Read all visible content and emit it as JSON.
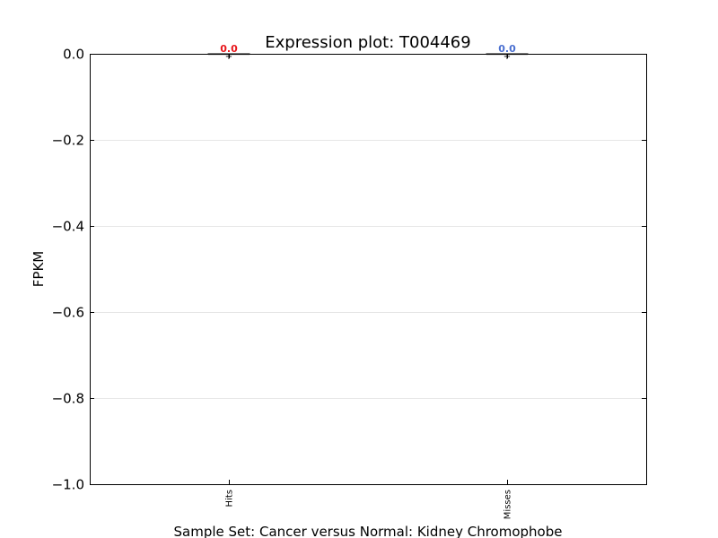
{
  "chart_data": {
    "type": "box",
    "title": "Expression plot: T004469",
    "xlabel": "Sample Set: Cancer versus Normal: Kidney Chromophobe",
    "ylabel": "FPKM",
    "ylim": [
      -1.0,
      0.0
    ],
    "yticks": [
      0.0,
      -0.2,
      -0.4,
      -0.6,
      -0.8,
      -1.0
    ],
    "ytick_labels": [
      "0.0",
      "−0.2",
      "−0.4",
      "−0.6",
      "−0.8",
      "−1.0"
    ],
    "categories": [
      "Hits",
      "Misses"
    ],
    "grid": "horizontal",
    "series": [
      {
        "category": "Hits",
        "median": 0.0,
        "q1": 0.0,
        "q3": 0.0,
        "min": 0.0,
        "max": 0.0,
        "label": "0.0",
        "label_color": "#e8161b"
      },
      {
        "category": "Misses",
        "median": 0.0,
        "q1": 0.0,
        "q3": 0.0,
        "min": 0.0,
        "max": 0.0,
        "label": "0.0",
        "label_color": "#4a6fd0"
      }
    ]
  }
}
